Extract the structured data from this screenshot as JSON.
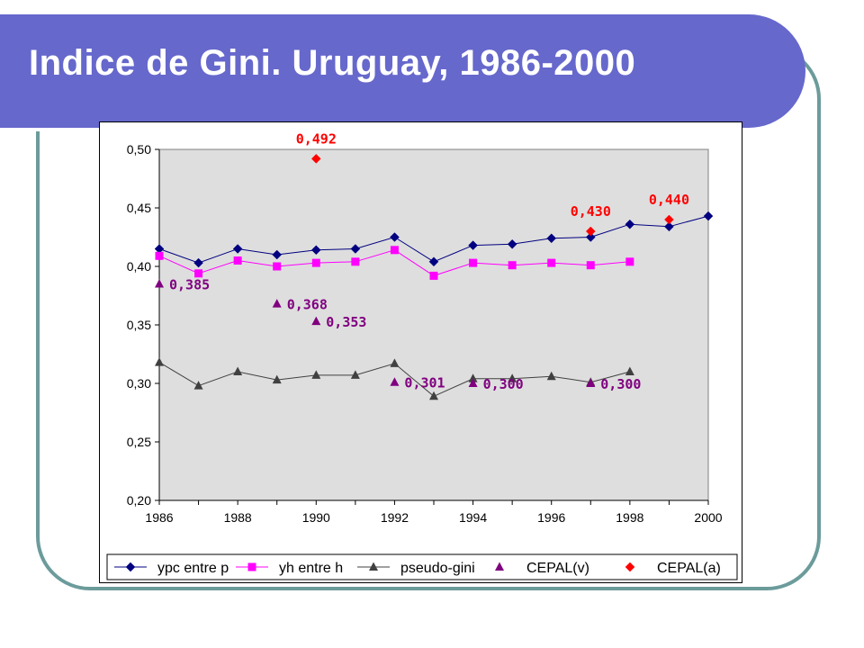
{
  "slide": {
    "title": "Indice de Gini. Uruguay, 1986-2000"
  },
  "colors": {
    "title_bar": "#6668cc",
    "frame": "#6c9b9b",
    "plot_bg": "#dedede"
  },
  "chart_data": {
    "type": "line",
    "title": "",
    "xlabel": "",
    "ylabel": "",
    "xlim": [
      1986,
      2000
    ],
    "ylim": [
      0.2,
      0.5
    ],
    "x_ticks": [
      "1986",
      "1988",
      "1990",
      "1992",
      "1994",
      "1996",
      "1998",
      "2000"
    ],
    "y_ticks": [
      "0,20",
      "0,25",
      "0,30",
      "0,35",
      "0,40",
      "0,45",
      "0,50"
    ],
    "grid": false,
    "legend_position": "bottom",
    "series": [
      {
        "name": "ypc entre p",
        "color": "#000080",
        "marker": "diamond",
        "line": true,
        "points": [
          {
            "x": 1986,
            "y": 0.415
          },
          {
            "x": 1987,
            "y": 0.403
          },
          {
            "x": 1988,
            "y": 0.415
          },
          {
            "x": 1989,
            "y": 0.41
          },
          {
            "x": 1990,
            "y": 0.414
          },
          {
            "x": 1991,
            "y": 0.415
          },
          {
            "x": 1992,
            "y": 0.425
          },
          {
            "x": 1993,
            "y": 0.404
          },
          {
            "x": 1994,
            "y": 0.418
          },
          {
            "x": 1995,
            "y": 0.419
          },
          {
            "x": 1996,
            "y": 0.424
          },
          {
            "x": 1997,
            "y": 0.425
          },
          {
            "x": 1998,
            "y": 0.436
          },
          {
            "x": 1999,
            "y": 0.434
          },
          {
            "x": 2000,
            "y": 0.443
          }
        ]
      },
      {
        "name": "yh entre h",
        "color": "#ff00ff",
        "marker": "square",
        "line": true,
        "points": [
          {
            "x": 1986,
            "y": 0.409
          },
          {
            "x": 1987,
            "y": 0.394
          },
          {
            "x": 1988,
            "y": 0.405
          },
          {
            "x": 1989,
            "y": 0.4
          },
          {
            "x": 1990,
            "y": 0.403
          },
          {
            "x": 1991,
            "y": 0.404
          },
          {
            "x": 1992,
            "y": 0.414
          },
          {
            "x": 1993,
            "y": 0.392
          },
          {
            "x": 1994,
            "y": 0.403
          },
          {
            "x": 1995,
            "y": 0.401
          },
          {
            "x": 1996,
            "y": 0.403
          },
          {
            "x": 1997,
            "y": 0.401
          },
          {
            "x": 1998,
            "y": 0.404
          }
        ]
      },
      {
        "name": "pseudo-gini",
        "color": "#404040",
        "marker": "triangle",
        "line": true,
        "points": [
          {
            "x": 1986,
            "y": 0.318
          },
          {
            "x": 1987,
            "y": 0.298
          },
          {
            "x": 1988,
            "y": 0.31
          },
          {
            "x": 1989,
            "y": 0.303
          },
          {
            "x": 1990,
            "y": 0.307
          },
          {
            "x": 1991,
            "y": 0.307
          },
          {
            "x": 1992,
            "y": 0.317
          },
          {
            "x": 1993,
            "y": 0.289
          },
          {
            "x": 1994,
            "y": 0.304
          },
          {
            "x": 1995,
            "y": 0.304
          },
          {
            "x": 1996,
            "y": 0.306
          },
          {
            "x": 1997,
            "y": 0.301
          },
          {
            "x": 1998,
            "y": 0.31
          }
        ]
      },
      {
        "name": "CEPAL(v)",
        "color": "#800080",
        "marker": "triangle",
        "line": false,
        "points": [
          {
            "x": 1986,
            "y": 0.385,
            "label": "0,385"
          },
          {
            "x": 1989,
            "y": 0.368,
            "label": "0,368"
          },
          {
            "x": 1990,
            "y": 0.353,
            "label": "0,353"
          },
          {
            "x": 1992,
            "y": 0.301,
            "label": "0,301"
          },
          {
            "x": 1994,
            "y": 0.3,
            "label": "0,300"
          },
          {
            "x": 1997,
            "y": 0.3,
            "label": "0,300"
          }
        ]
      },
      {
        "name": "CEPAL(a)",
        "color": "#ff0000",
        "marker": "diamond",
        "line": false,
        "points": [
          {
            "x": 1990,
            "y": 0.492,
            "label": "0,492"
          },
          {
            "x": 1997,
            "y": 0.43,
            "label": "0,430"
          },
          {
            "x": 1999,
            "y": 0.44,
            "label": "0,440"
          }
        ]
      }
    ]
  }
}
